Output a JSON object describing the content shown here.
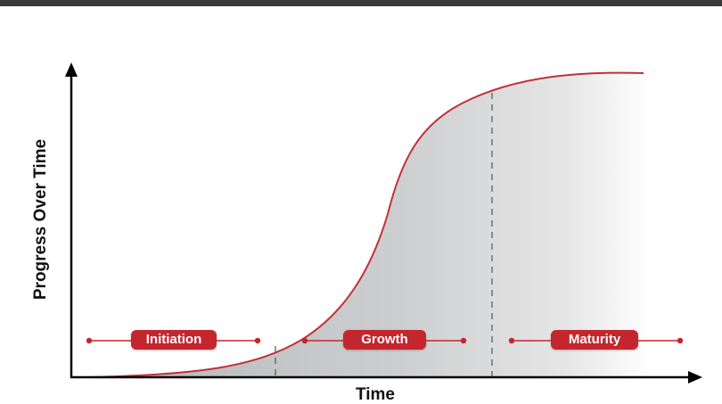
{
  "diagram": {
    "y_axis_label": "Progress Over Time",
    "x_axis_label": "Time",
    "phases": [
      {
        "label": "Initiation"
      },
      {
        "label": "Growth"
      },
      {
        "label": "Maturity"
      }
    ],
    "colors": {
      "accent": "#c4262e",
      "curve": "#c0323a",
      "fill_dark": "#b9babc",
      "fill_light": "#ffffff",
      "axis": "#000000",
      "top_bar": "#3a3a3d"
    }
  }
}
